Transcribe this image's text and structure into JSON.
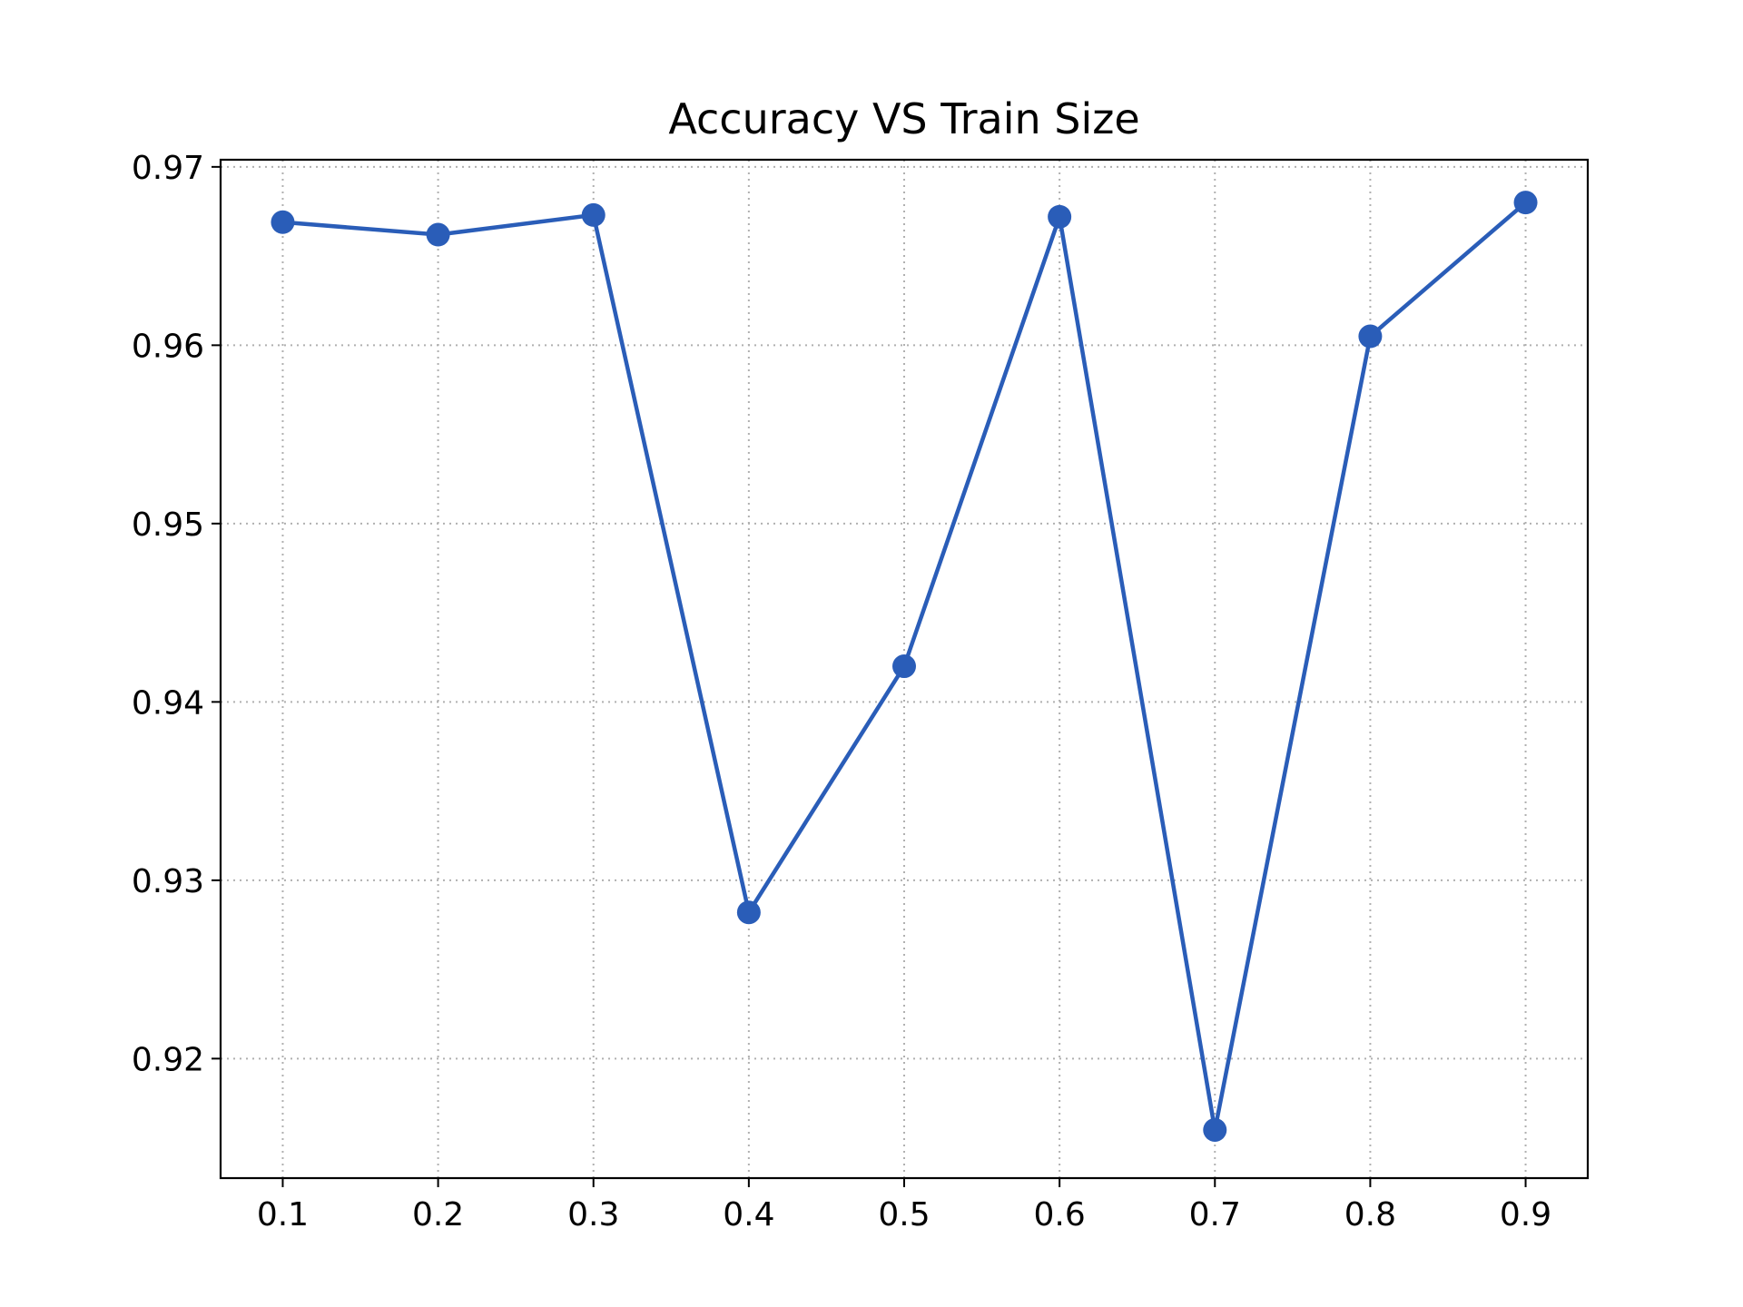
{
  "chart_data": {
    "type": "line",
    "title": "Accuracy VS Train Size",
    "xlabel": "",
    "ylabel": "",
    "x": [
      0.1,
      0.2,
      0.3,
      0.4,
      0.5,
      0.6,
      0.7,
      0.8,
      0.9
    ],
    "series": [
      {
        "values": [
          0.9669,
          0.9662,
          0.9673,
          0.9282,
          0.942,
          0.9672,
          0.916,
          0.9605,
          0.968
        ],
        "color": "#2a5db8",
        "marker": "circle"
      }
    ],
    "xticks": [
      "0.1",
      "0.2",
      "0.3",
      "0.4",
      "0.5",
      "0.6",
      "0.7",
      "0.8",
      "0.9"
    ],
    "yticks": [
      "0.92",
      "0.93",
      "0.94",
      "0.95",
      "0.96",
      "0.97"
    ],
    "xlim": [
      0.06,
      0.94
    ],
    "ylim": [
      0.9133,
      0.9704
    ],
    "grid": true,
    "grid_style": "dotted"
  }
}
